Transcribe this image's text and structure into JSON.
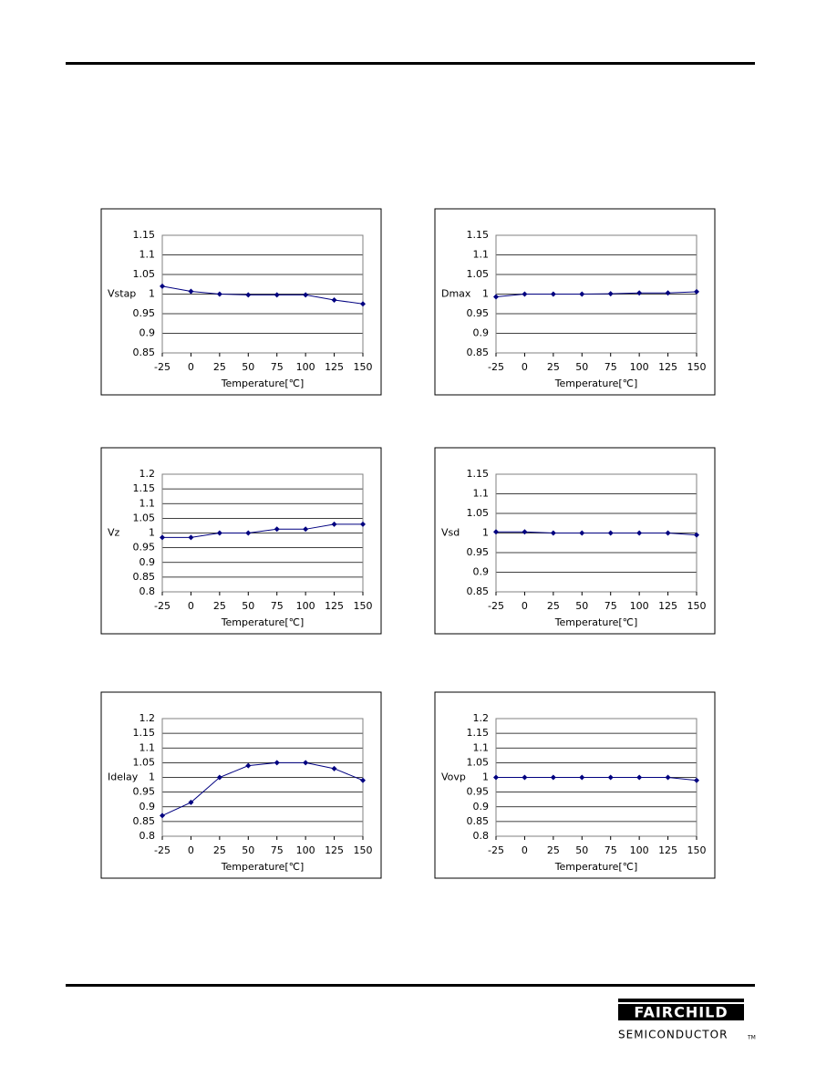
{
  "chart_data": [
    {
      "type": "line",
      "ylabel": "Vstap",
      "xlabel": "Temperature[℃]",
      "x": [
        -25,
        0,
        25,
        50,
        75,
        100,
        125,
        150
      ],
      "values": [
        1.02,
        1.007,
        1.0,
        0.998,
        0.998,
        0.998,
        0.985,
        0.975
      ],
      "color": "#000080",
      "xlim": [
        -25,
        150
      ],
      "xticks": [
        -25,
        0,
        25,
        50,
        75,
        100,
        125,
        150
      ],
      "ylim": [
        0.85,
        1.15
      ],
      "yticks": [
        0.85,
        0.9,
        0.95,
        1,
        1.05,
        1.1,
        1.15
      ],
      "grid": true
    },
    {
      "type": "line",
      "ylabel": "Dmax",
      "xlabel": "Temperature[℃]",
      "x": [
        -25,
        0,
        25,
        50,
        75,
        100,
        125,
        150
      ],
      "values": [
        0.993,
        1.0,
        1.0,
        1.0,
        1.001,
        1.003,
        1.003,
        1.006
      ],
      "color": "#000080",
      "xlim": [
        -25,
        150
      ],
      "xticks": [
        -25,
        0,
        25,
        50,
        75,
        100,
        125,
        150
      ],
      "ylim": [
        0.85,
        1.15
      ],
      "yticks": [
        0.85,
        0.9,
        0.95,
        1,
        1.05,
        1.1,
        1.15
      ],
      "grid": true
    },
    {
      "type": "line",
      "ylabel": "Vz",
      "xlabel": "Temperature[℃]",
      "x": [
        -25,
        0,
        25,
        50,
        75,
        100,
        125,
        150
      ],
      "values": [
        0.985,
        0.985,
        1.0,
        1.0,
        1.013,
        1.013,
        1.03,
        1.03
      ],
      "color": "#000080",
      "xlim": [
        -25,
        150
      ],
      "xticks": [
        -25,
        0,
        25,
        50,
        75,
        100,
        125,
        150
      ],
      "ylim": [
        0.8,
        1.2
      ],
      "yticks": [
        0.8,
        0.85,
        0.9,
        0.95,
        1,
        1.05,
        1.1,
        1.15,
        1.2
      ],
      "grid": true
    },
    {
      "type": "line",
      "ylabel": "Vsd",
      "xlabel": "Temperature[℃]",
      "x": [
        -25,
        0,
        25,
        50,
        75,
        100,
        125,
        150
      ],
      "values": [
        1.003,
        1.003,
        1.0,
        1.0,
        1.0,
        1.0,
        1.0,
        0.995
      ],
      "color": "#000080",
      "xlim": [
        -25,
        150
      ],
      "xticks": [
        -25,
        0,
        25,
        50,
        75,
        100,
        125,
        150
      ],
      "ylim": [
        0.85,
        1.15
      ],
      "yticks": [
        0.85,
        0.9,
        0.95,
        1,
        1.05,
        1.1,
        1.15
      ],
      "grid": true
    },
    {
      "type": "line",
      "ylabel": "Idelay",
      "xlabel": "Temperature[℃]",
      "x": [
        -25,
        0,
        25,
        50,
        75,
        100,
        125,
        150
      ],
      "values": [
        0.87,
        0.915,
        1.0,
        1.04,
        1.05,
        1.05,
        1.03,
        0.99
      ],
      "color": "#000080",
      "xlim": [
        -25,
        150
      ],
      "xticks": [
        -25,
        0,
        25,
        50,
        75,
        100,
        125,
        150
      ],
      "ylim": [
        0.8,
        1.2
      ],
      "yticks": [
        0.8,
        0.85,
        0.9,
        0.95,
        1,
        1.05,
        1.1,
        1.15,
        1.2
      ],
      "grid": true
    },
    {
      "type": "line",
      "ylabel": "Vovp",
      "xlabel": "Temperature[℃]",
      "x": [
        -25,
        0,
        25,
        50,
        75,
        100,
        125,
        150
      ],
      "values": [
        1.0,
        1.0,
        1.0,
        1.0,
        1.0,
        1.0,
        1.0,
        0.99
      ],
      "color": "#000080",
      "xlim": [
        -25,
        150
      ],
      "xticks": [
        -25,
        0,
        25,
        50,
        75,
        100,
        125,
        150
      ],
      "ylim": [
        0.8,
        1.2
      ],
      "yticks": [
        0.8,
        0.85,
        0.9,
        0.95,
        1,
        1.05,
        1.1,
        1.15,
        1.2
      ],
      "grid": true
    }
  ],
  "footer": {
    "brand": "FAIRCHILD",
    "subtitle": "SEMICONDUCTOR",
    "tm": "TM"
  }
}
